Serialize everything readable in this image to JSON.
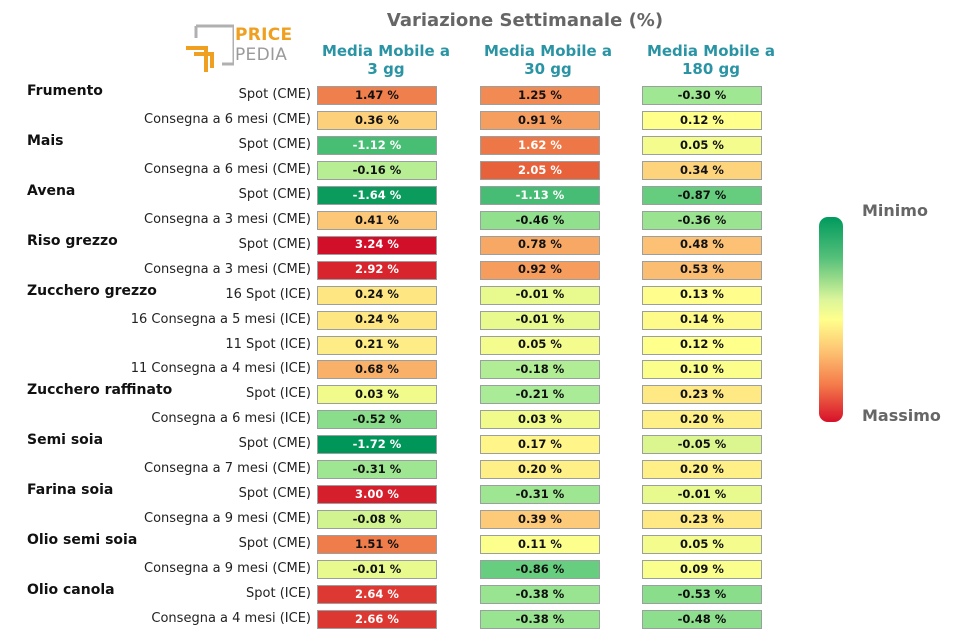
{
  "chart_data": {
    "type": "table",
    "title": "Variazione Settimanale (%)",
    "columns": [
      {
        "line1": "Media Mobile a",
        "line2": "3 gg"
      },
      {
        "line1": "Media Mobile a",
        "line2": "30 gg"
      },
      {
        "line1": "Media Mobile a",
        "line2": "180 gg"
      }
    ],
    "rows": [
      {
        "product": "Frumento",
        "label": "Spot (CME)",
        "values": [
          1.47,
          1.25,
          -0.3
        ]
      },
      {
        "product": "",
        "label": "Consegna a 6 mesi (CME)",
        "values": [
          0.36,
          0.91,
          0.12
        ]
      },
      {
        "product": "Mais",
        "label": "Spot (CME)",
        "values": [
          -1.12,
          1.62,
          0.05
        ]
      },
      {
        "product": "",
        "label": "Consegna a 6 mesi (CME)",
        "values": [
          -0.16,
          2.05,
          0.34
        ]
      },
      {
        "product": "Avena",
        "label": "Spot (CME)",
        "values": [
          -1.64,
          -1.13,
          -0.87
        ]
      },
      {
        "product": "",
        "label": "Consegna a 3 mesi (CME)",
        "values": [
          0.41,
          -0.46,
          -0.36
        ]
      },
      {
        "product": "Riso grezzo",
        "label": "Spot (CME)",
        "values": [
          3.24,
          0.78,
          0.48
        ]
      },
      {
        "product": "",
        "label": "Consegna a 3 mesi (CME)",
        "values": [
          2.92,
          0.92,
          0.53
        ]
      },
      {
        "product": "Zucchero grezzo",
        "label": "16 Spot (ICE)",
        "values": [
          0.24,
          -0.01,
          0.13
        ]
      },
      {
        "product": "",
        "label": "16 Consegna a 5 mesi (ICE)",
        "values": [
          0.24,
          -0.01,
          0.14
        ]
      },
      {
        "product": "",
        "label": "11 Spot (ICE)",
        "values": [
          0.21,
          0.05,
          0.12
        ]
      },
      {
        "product": "",
        "label": "11 Consegna a 4 mesi (ICE)",
        "values": [
          0.68,
          -0.18,
          0.1
        ]
      },
      {
        "product": "Zucchero raffinato",
        "label": "Spot (ICE)",
        "values": [
          0.03,
          -0.21,
          0.23
        ]
      },
      {
        "product": "",
        "label": "Consegna a 6 mesi (ICE)",
        "values": [
          -0.52,
          0.03,
          0.2
        ]
      },
      {
        "product": "Semi soia",
        "label": "Spot (CME)",
        "values": [
          -1.72,
          0.17,
          -0.05
        ]
      },
      {
        "product": "",
        "label": "Consegna a 7 mesi (CME)",
        "values": [
          -0.31,
          0.2,
          0.2
        ]
      },
      {
        "product": "Farina soia",
        "label": "Spot (CME)",
        "values": [
          3.0,
          -0.31,
          -0.01
        ]
      },
      {
        "product": "",
        "label": "Consegna a 9 mesi (CME)",
        "values": [
          -0.08,
          0.39,
          0.23
        ]
      },
      {
        "product": "Olio semi soia",
        "label": "Spot (CME)",
        "values": [
          1.51,
          0.11,
          0.05
        ]
      },
      {
        "product": "",
        "label": "Consegna a 9 mesi (CME)",
        "values": [
          -0.01,
          -0.86,
          0.09
        ]
      },
      {
        "product": "Olio canola",
        "label": "Spot (ICE)",
        "values": [
          2.64,
          -0.38,
          -0.53
        ]
      },
      {
        "product": "",
        "label": "Consegna a 4 mesi (ICE)",
        "values": [
          2.66,
          -0.38,
          -0.48
        ]
      }
    ],
    "legend": {
      "top_label": "Minimo",
      "bottom_label": "Massimo"
    },
    "color_scale": [
      "#009a5e",
      "#8fe39a",
      "#ffff8c",
      "#fdc573",
      "#f5894f",
      "#d7102a"
    ]
  },
  "logo": {
    "line1": "PRICE",
    "line2": "PEDIA"
  }
}
